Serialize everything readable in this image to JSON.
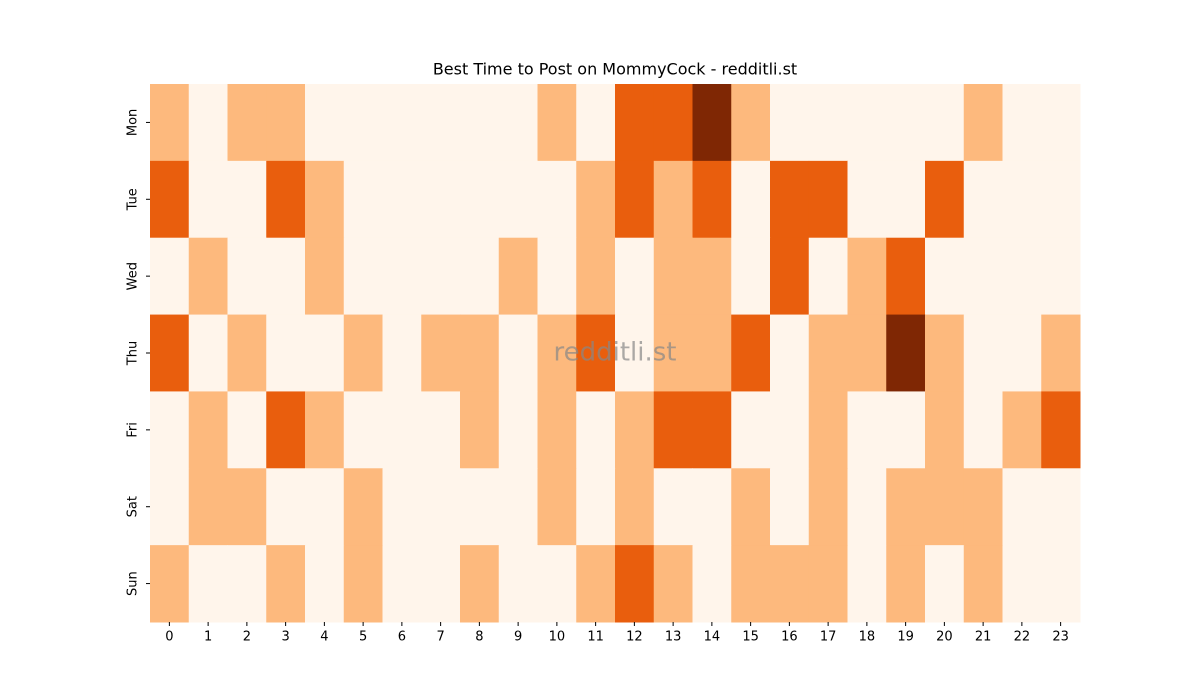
{
  "chart_data": {
    "type": "heatmap",
    "title": "Best Time to Post on MommyCock - redditli.st",
    "watermark": "redditli.st",
    "columns": [
      0,
      1,
      2,
      3,
      4,
      5,
      6,
      7,
      8,
      9,
      10,
      11,
      12,
      13,
      14,
      15,
      16,
      17,
      18,
      19,
      20,
      21,
      22,
      23
    ],
    "rows": [
      "Mon",
      "Tue",
      "Wed",
      "Thu",
      "Fri",
      "Sat",
      "Sun"
    ],
    "colors": [
      "#fff5eb",
      "#fdb97d",
      "#e95e0d",
      "#7f2704"
    ],
    "values": [
      [
        1,
        0,
        1,
        1,
        0,
        0,
        0,
        0,
        0,
        0,
        1,
        0,
        2,
        2,
        3,
        1,
        0,
        0,
        0,
        0,
        0,
        1,
        0,
        0
      ],
      [
        2,
        0,
        0,
        2,
        1,
        0,
        0,
        0,
        0,
        0,
        0,
        1,
        2,
        1,
        2,
        0,
        2,
        2,
        0,
        0,
        2,
        0,
        0,
        0
      ],
      [
        0,
        1,
        0,
        0,
        1,
        0,
        0,
        0,
        0,
        1,
        0,
        1,
        0,
        1,
        1,
        0,
        2,
        0,
        1,
        2,
        0,
        0,
        0,
        0
      ],
      [
        2,
        0,
        1,
        0,
        0,
        1,
        0,
        1,
        1,
        0,
        1,
        2,
        0,
        1,
        1,
        2,
        0,
        1,
        1,
        3,
        1,
        0,
        0,
        1
      ],
      [
        0,
        1,
        0,
        2,
        1,
        0,
        0,
        0,
        1,
        0,
        1,
        0,
        1,
        2,
        2,
        0,
        0,
        1,
        0,
        0,
        1,
        0,
        1,
        2
      ],
      [
        0,
        1,
        1,
        0,
        0,
        1,
        0,
        0,
        0,
        0,
        1,
        0,
        1,
        0,
        0,
        1,
        0,
        1,
        0,
        1,
        1,
        1,
        0,
        0
      ],
      [
        1,
        0,
        0,
        1,
        0,
        1,
        0,
        0,
        1,
        0,
        0,
        1,
        2,
        1,
        0,
        1,
        1,
        1,
        0,
        1,
        0,
        1,
        0,
        0
      ]
    ]
  }
}
